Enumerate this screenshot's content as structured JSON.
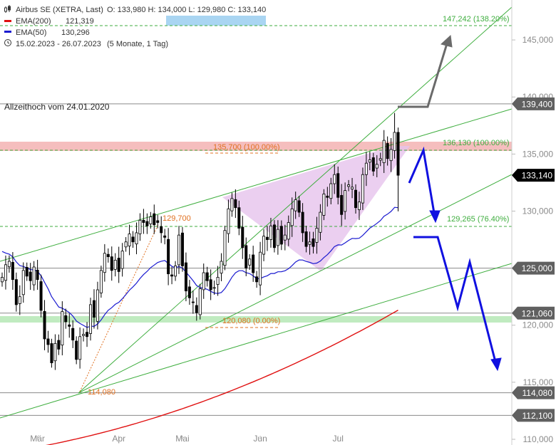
{
  "legend": {
    "instrument": "Airbus SE (XETRA, Last)",
    "ohlc": "O: 133,980  H: 134,000  L: 129,980  C: 133,140",
    "ema200_label": "EMA(200)",
    "ema200_value": "121,319",
    "ema50_label": "EMA(50)",
    "ema50_value": "130,296",
    "range": "15.02.2023 - 26.07.2023",
    "period": "(5 Monate, 1 Tag)"
  },
  "colors": {
    "ema200": "#e01010",
    "ema50": "#1a1ad0",
    "trend": "#3fae3f",
    "fib": "#e07020",
    "arrow_gray": "#6a6a6a",
    "arrow_blue": "#1010e0",
    "triangle": "#e6c3ec",
    "resistance_band": "#f0a0a0",
    "support_band": "#a8e4a8",
    "tag_bg": "#606060",
    "tag_price_bg": "#000000",
    "candle": "#000000"
  },
  "chart_data": {
    "type": "candlestick",
    "title": "",
    "ylim": [
      110000,
      148500
    ],
    "y_ticks": [
      {
        "v": 110000,
        "label": "110,000"
      },
      {
        "v": 115000,
        "label": "115,000"
      },
      {
        "v": 120000,
        "label": "120,000"
      },
      {
        "v": 125000,
        "label": "125,000"
      },
      {
        "v": 130000,
        "label": "130,000"
      },
      {
        "v": 135000,
        "label": "135,000"
      },
      {
        "v": 140000,
        "label": "140,000"
      },
      {
        "v": 145000,
        "label": "145,000"
      }
    ],
    "x_ticks": [
      {
        "date": "2023-03-01",
        "label": "Mär"
      },
      {
        "date": "2023-04-03",
        "label": "Apr"
      },
      {
        "date": "2023-05-02",
        "label": "Mai"
      },
      {
        "date": "2023-06-01",
        "label": "Jun"
      },
      {
        "date": "2023-07-03",
        "label": "Jul"
      }
    ],
    "dates": [
      "2023-02-15",
      "2023-02-16",
      "2023-02-17",
      "2023-02-20",
      "2023-02-21",
      "2023-02-22",
      "2023-02-23",
      "2023-02-24",
      "2023-02-27",
      "2023-02-28",
      "2023-03-01",
      "2023-03-02",
      "2023-03-03",
      "2023-03-06",
      "2023-03-07",
      "2023-03-08",
      "2023-03-09",
      "2023-03-10",
      "2023-03-13",
      "2023-03-14",
      "2023-03-15",
      "2023-03-16",
      "2023-03-17",
      "2023-03-20",
      "2023-03-21",
      "2023-03-22",
      "2023-03-23",
      "2023-03-24",
      "2023-03-27",
      "2023-03-28",
      "2023-03-29",
      "2023-03-30",
      "2023-03-31",
      "2023-04-03",
      "2023-04-04",
      "2023-04-05",
      "2023-04-06",
      "2023-04-11",
      "2023-04-12",
      "2023-04-13",
      "2023-04-14",
      "2023-04-17",
      "2023-04-18",
      "2023-04-19",
      "2023-04-20",
      "2023-04-21",
      "2023-04-24",
      "2023-04-25",
      "2023-04-26",
      "2023-04-27",
      "2023-04-28",
      "2023-05-02",
      "2023-05-03",
      "2023-05-04",
      "2023-05-05",
      "2023-05-08",
      "2023-05-09",
      "2023-05-10",
      "2023-05-11",
      "2023-05-12",
      "2023-05-15",
      "2023-05-16",
      "2023-05-17",
      "2023-05-18",
      "2023-05-19",
      "2023-05-22",
      "2023-05-23",
      "2023-05-24",
      "2023-05-25",
      "2023-05-26",
      "2023-05-29",
      "2023-05-30",
      "2023-05-31",
      "2023-06-01",
      "2023-06-02",
      "2023-06-05",
      "2023-06-06",
      "2023-06-07",
      "2023-06-08",
      "2023-06-09",
      "2023-06-12",
      "2023-06-13",
      "2023-06-14",
      "2023-06-15",
      "2023-06-16",
      "2023-06-19",
      "2023-06-20",
      "2023-06-21",
      "2023-06-22",
      "2023-06-23",
      "2023-06-26",
      "2023-06-27",
      "2023-06-28",
      "2023-06-29",
      "2023-06-30",
      "2023-07-03",
      "2023-07-04",
      "2023-07-05",
      "2023-07-06",
      "2023-07-07",
      "2023-07-10",
      "2023-07-11",
      "2023-07-12",
      "2023-07-13",
      "2023-07-14",
      "2023-07-17",
      "2023-07-18",
      "2023-07-19",
      "2023-07-20",
      "2023-07-21",
      "2023-07-24",
      "2023-07-25",
      "2023-07-26"
    ],
    "closes": [
      124200,
      125300,
      125600,
      124000,
      121800,
      122500,
      124800,
      124300,
      123900,
      125100,
      124000,
      121300,
      118800,
      118300,
      116700,
      118400,
      117900,
      121200,
      120300,
      119900,
      118700,
      117000,
      119000,
      119200,
      119000,
      121800,
      120700,
      123100,
      124800,
      126300,
      126000,
      124800,
      125700,
      124700,
      126500,
      127300,
      128000,
      127300,
      128100,
      129200,
      129000,
      128700,
      129500,
      128800,
      129000,
      128100,
      127700,
      124500,
      124300,
      125200,
      127900,
      125200,
      123000,
      122400,
      122000,
      121100,
      123200,
      124600,
      123900,
      123100,
      123300,
      124200,
      125600,
      128300,
      130200,
      131100,
      130300,
      128500,
      126800,
      125000,
      125800,
      124600,
      123800,
      126400,
      127800,
      127500,
      128700,
      126800,
      128400,
      127100,
      127900,
      129000,
      130200,
      131000,
      129900,
      128100,
      126900,
      127300,
      126900,
      128500,
      129900,
      131500,
      131200,
      132400,
      133200,
      131200,
      129700,
      131800,
      132300,
      132100,
      130300,
      130800,
      133200,
      134200,
      134500,
      133500,
      134100,
      134600,
      136200,
      134600,
      135400,
      136900,
      133140
    ],
    "series": [
      {
        "name": "EMA(200)",
        "y_end": 121319
      },
      {
        "name": "EMA(50)",
        "y_end": 130296
      }
    ],
    "horizontal_levels": [
      {
        "value": 139400,
        "label": "139,400"
      },
      {
        "value": 125000,
        "label": "125,000"
      },
      {
        "value": 121060,
        "label": "121,060"
      },
      {
        "value": 114080,
        "label": "114,080"
      },
      {
        "value": 112100,
        "label": "112,100"
      }
    ],
    "current_price": {
      "value": 133140,
      "label": "133,140"
    },
    "annotations": {
      "ath": "Allzeithoch vom 24.01.2020",
      "fib_100": "135,700 (100.00%)",
      "fib_0": "120,080 (0.00%)",
      "fib_high": "129,700",
      "fib_low": "114,080",
      "target_100": "136,130 (100.00%)",
      "target_764": "129,265 (76.40%)",
      "target_138": "147,242 (138.20%)"
    }
  }
}
